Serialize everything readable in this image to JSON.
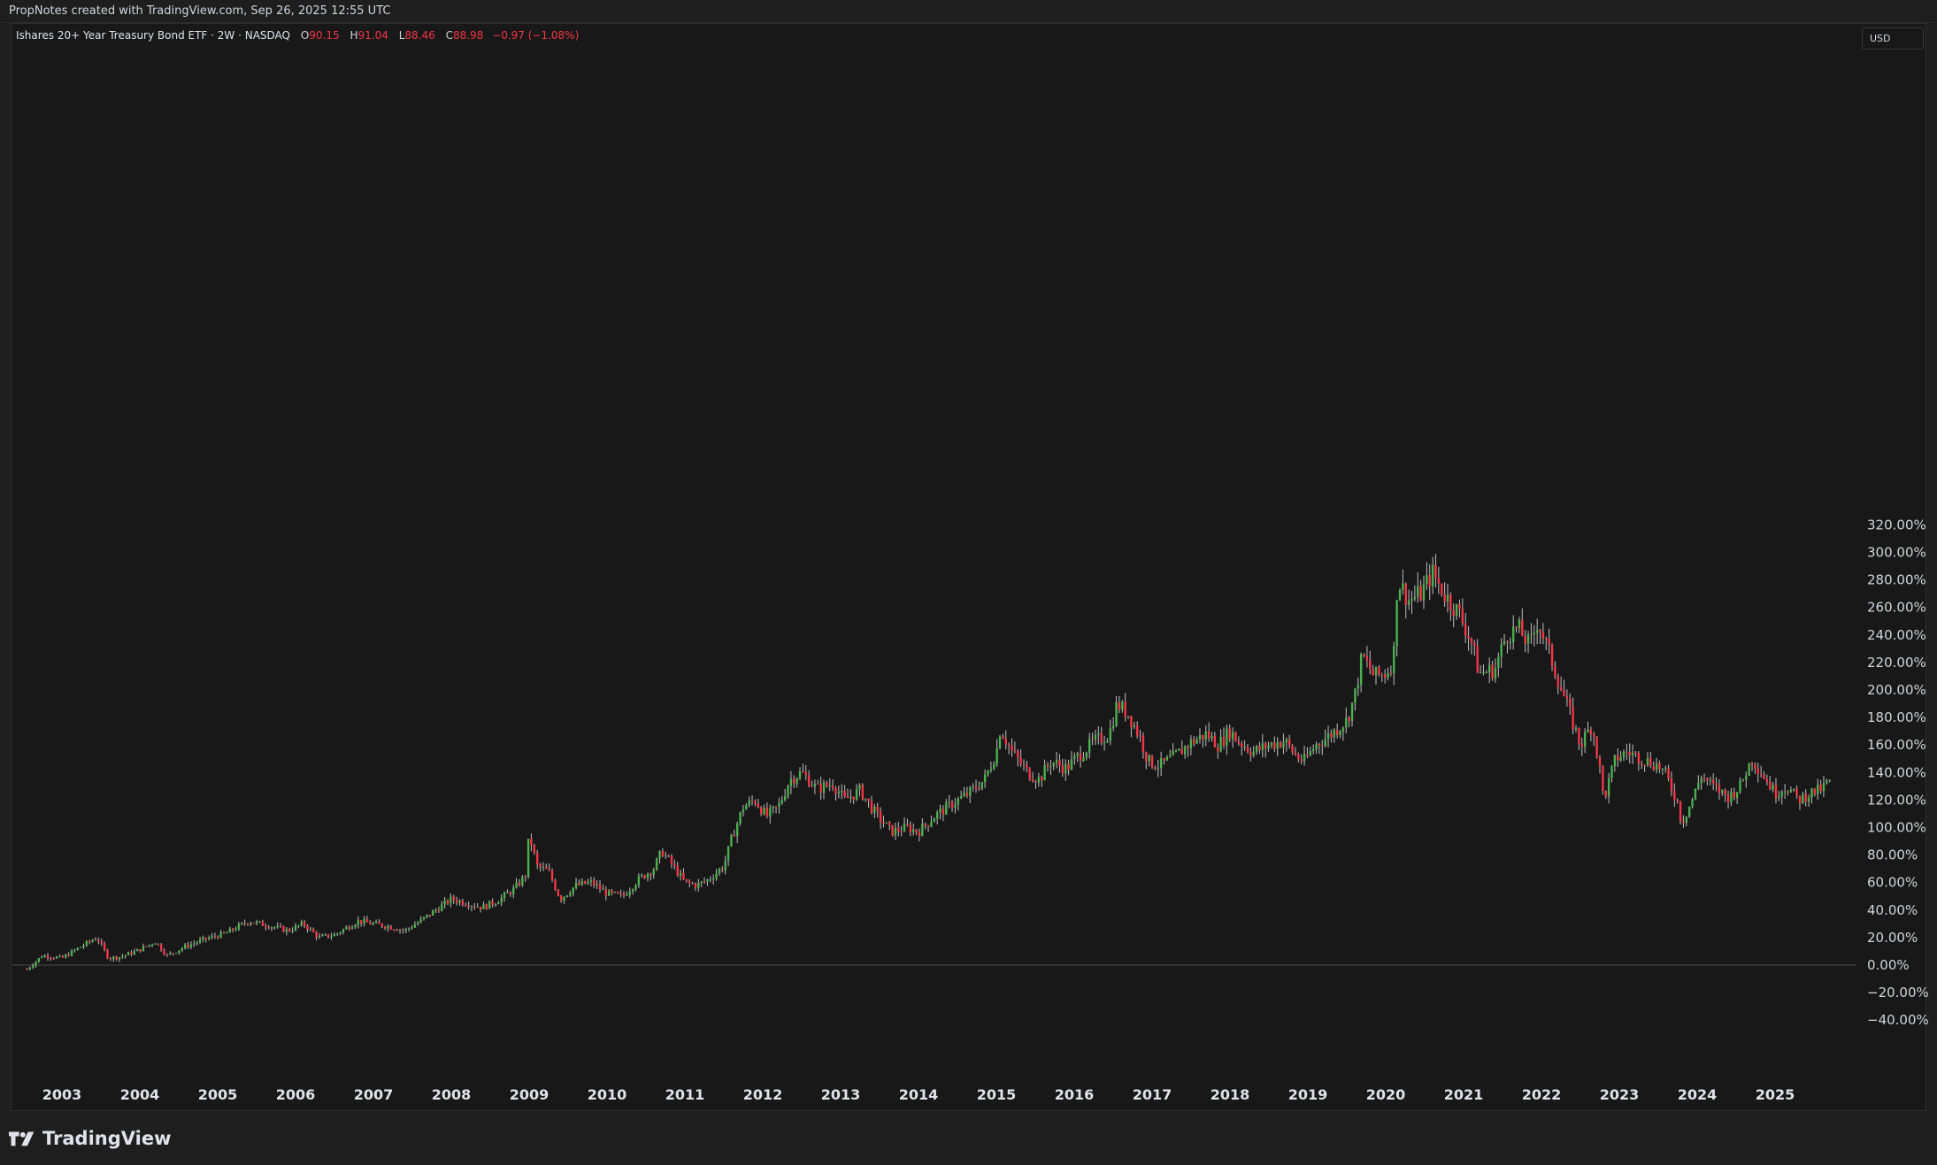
{
  "header": {
    "attribution": "PropNotes created with TradingView.com, Sep 26, 2025 12:55 UTC"
  },
  "legend": {
    "title": "Ishares 20+ Year Treasury Bond ETF · 2W · NASDAQ",
    "open_key": "O",
    "open": "90.15",
    "high_key": "H",
    "high": "91.04",
    "low_key": "L",
    "low": "88.46",
    "close_key": "C",
    "close": "88.98",
    "change": "−0.97 (−1.08%)"
  },
  "currency": "USD",
  "footer": {
    "brand": "TradingView"
  },
  "colors": {
    "up": "#4caf50",
    "down": "#f23645",
    "background": "#181818",
    "text": "#d1d4dc"
  },
  "chart_data": {
    "type": "candlestick",
    "interval": "2W",
    "y_unit": "percent change",
    "ylim": [
      -40,
      320
    ],
    "y_ticks": [
      "320.00%",
      "300.00%",
      "280.00%",
      "260.00%",
      "240.00%",
      "220.00%",
      "200.00%",
      "180.00%",
      "160.00%",
      "140.00%",
      "120.00%",
      "100.00%",
      "80.00%",
      "60.00%",
      "40.00%",
      "20.00%",
      "0.00%",
      "−20.00%",
      "−40.00%"
    ],
    "x_ticks": [
      "2003",
      "2004",
      "2005",
      "2006",
      "2007",
      "2008",
      "2009",
      "2010",
      "2011",
      "2012",
      "2013",
      "2014",
      "2015",
      "2016",
      "2017",
      "2018",
      "2019",
      "2020",
      "2021",
      "2022",
      "2023",
      "2024",
      "2025"
    ],
    "baseline": 0,
    "series": [
      {
        "values": [
          [
            2002.55,
            -3
          ],
          [
            2002.75,
            7
          ],
          [
            2003.0,
            5
          ],
          [
            2003.2,
            12
          ],
          [
            2003.45,
            20
          ],
          [
            2003.6,
            5
          ],
          [
            2003.75,
            6
          ],
          [
            2003.95,
            10
          ],
          [
            2004.2,
            17
          ],
          [
            2004.35,
            7
          ],
          [
            2004.6,
            14
          ],
          [
            2004.9,
            20
          ],
          [
            2005.1,
            23
          ],
          [
            2005.4,
            32
          ],
          [
            2005.7,
            28
          ],
          [
            2005.9,
            25
          ],
          [
            2006.1,
            30
          ],
          [
            2006.3,
            20
          ],
          [
            2006.5,
            22
          ],
          [
            2006.8,
            32
          ],
          [
            2007.0,
            30
          ],
          [
            2007.2,
            28
          ],
          [
            2007.4,
            25
          ],
          [
            2007.6,
            32
          ],
          [
            2007.85,
            42
          ],
          [
            2008.0,
            48
          ],
          [
            2008.2,
            45
          ],
          [
            2008.4,
            42
          ],
          [
            2008.6,
            47
          ],
          [
            2008.8,
            55
          ],
          [
            2008.95,
            65
          ],
          [
            2009.0,
            95
          ],
          [
            2009.1,
            72
          ],
          [
            2009.25,
            68
          ],
          [
            2009.4,
            48
          ],
          [
            2009.6,
            58
          ],
          [
            2009.8,
            60
          ],
          [
            2010.0,
            52
          ],
          [
            2010.2,
            50
          ],
          [
            2010.4,
            62
          ],
          [
            2010.6,
            70
          ],
          [
            2010.7,
            83
          ],
          [
            2010.85,
            72
          ],
          [
            2011.0,
            60
          ],
          [
            2011.15,
            58
          ],
          [
            2011.3,
            62
          ],
          [
            2011.5,
            72
          ],
          [
            2011.6,
            92
          ],
          [
            2011.75,
            115
          ],
          [
            2011.9,
            120
          ],
          [
            2012.05,
            108
          ],
          [
            2012.2,
            115
          ],
          [
            2012.35,
            135
          ],
          [
            2012.5,
            140
          ],
          [
            2012.7,
            128
          ],
          [
            2012.9,
            132
          ],
          [
            2013.05,
            120
          ],
          [
            2013.25,
            127
          ],
          [
            2013.45,
            110
          ],
          [
            2013.65,
            97
          ],
          [
            2013.85,
            100
          ],
          [
            2014.0,
            97
          ],
          [
            2014.2,
            108
          ],
          [
            2014.45,
            118
          ],
          [
            2014.65,
            125
          ],
          [
            2014.85,
            135
          ],
          [
            2015.0,
            155
          ],
          [
            2015.05,
            172
          ],
          [
            2015.2,
            155
          ],
          [
            2015.4,
            140
          ],
          [
            2015.55,
            135
          ],
          [
            2015.7,
            148
          ],
          [
            2015.9,
            143
          ],
          [
            2016.05,
            152
          ],
          [
            2016.25,
            162
          ],
          [
            2016.45,
            168
          ],
          [
            2016.55,
            190
          ],
          [
            2016.7,
            182
          ],
          [
            2016.85,
            165
          ],
          [
            2016.95,
            148
          ],
          [
            2017.1,
            145
          ],
          [
            2017.3,
            152
          ],
          [
            2017.5,
            162
          ],
          [
            2017.7,
            168
          ],
          [
            2017.85,
            160
          ],
          [
            2018.0,
            170
          ],
          [
            2018.1,
            163
          ],
          [
            2018.3,
            155
          ],
          [
            2018.5,
            160
          ],
          [
            2018.7,
            163
          ],
          [
            2018.85,
            152
          ],
          [
            2018.95,
            148
          ],
          [
            2019.1,
            160
          ],
          [
            2019.3,
            168
          ],
          [
            2019.5,
            178
          ],
          [
            2019.6,
            195
          ],
          [
            2019.7,
            225
          ],
          [
            2019.85,
            210
          ],
          [
            2020.0,
            212
          ],
          [
            2020.1,
            222
          ],
          [
            2020.15,
            280
          ],
          [
            2020.3,
            265
          ],
          [
            2020.45,
            270
          ],
          [
            2020.6,
            285
          ],
          [
            2020.75,
            270
          ],
          [
            2020.95,
            255
          ],
          [
            2021.1,
            235
          ],
          [
            2021.2,
            212
          ],
          [
            2021.4,
            215
          ],
          [
            2021.55,
            240
          ],
          [
            2021.7,
            245
          ],
          [
            2021.85,
            232
          ],
          [
            2021.95,
            250
          ],
          [
            2022.05,
            235
          ],
          [
            2022.2,
            210
          ],
          [
            2022.35,
            185
          ],
          [
            2022.5,
            160
          ],
          [
            2022.65,
            175
          ],
          [
            2022.75,
            142
          ],
          [
            2022.8,
            120
          ],
          [
            2022.95,
            150
          ],
          [
            2023.1,
            155
          ],
          [
            2023.3,
            150
          ],
          [
            2023.5,
            145
          ],
          [
            2023.6,
            138
          ],
          [
            2023.75,
            118
          ],
          [
            2023.8,
            103
          ],
          [
            2023.95,
            122
          ],
          [
            2024.05,
            138
          ],
          [
            2024.2,
            130
          ],
          [
            2024.4,
            122
          ],
          [
            2024.55,
            130
          ],
          [
            2024.7,
            150
          ],
          [
            2024.85,
            138
          ],
          [
            2025.0,
            125
          ],
          [
            2025.15,
            130
          ],
          [
            2025.3,
            120
          ],
          [
            2025.45,
            125
          ],
          [
            2025.6,
            128
          ],
          [
            2025.72,
            135
          ]
        ]
      }
    ]
  }
}
